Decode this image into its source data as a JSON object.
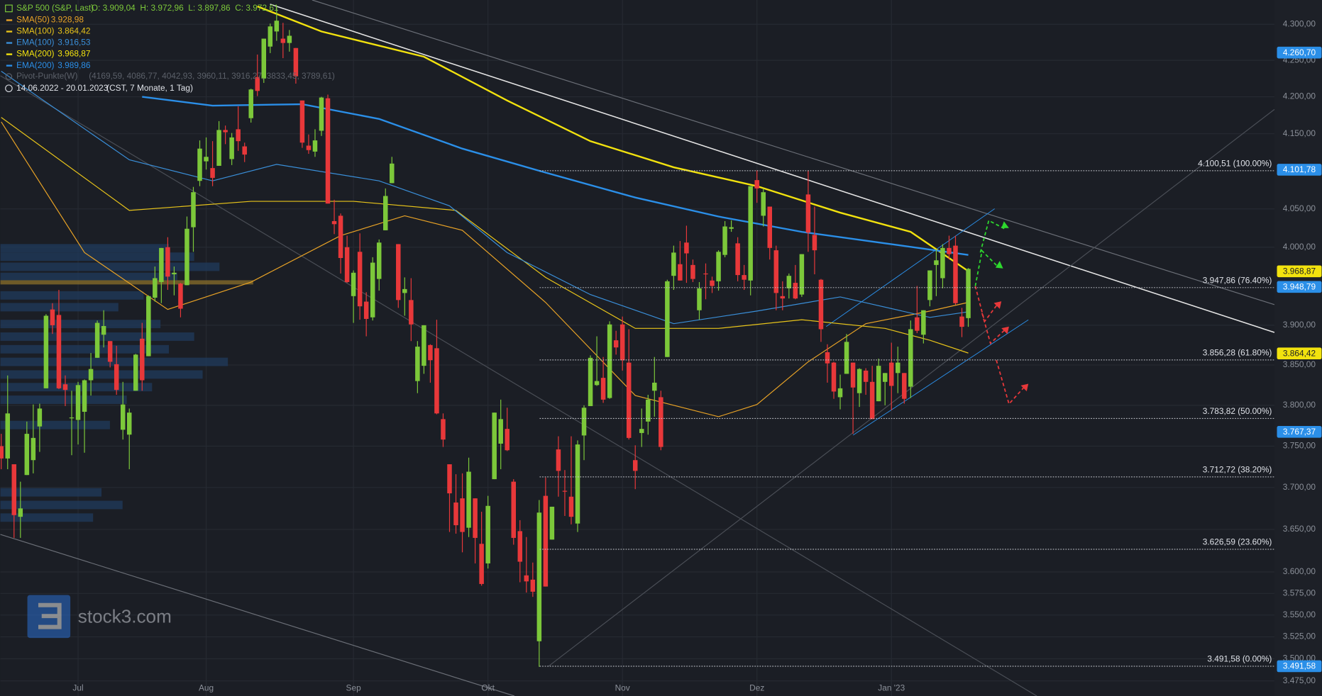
{
  "chart_data": {
    "type": "candlestick",
    "title": "S&P 500 (S&P, Last)",
    "ohlc_label": "O: 3.909,04  H: 3.972,96  L: 3.897,86  C: 3.972,61",
    "range_label": "14.06.2022 - 20.01.2023",
    "range_note": "(CST, 7 Monate, 1 Tag)",
    "pivot_name": "Pivot-Punkte(W)",
    "pivot_label": "(4169,59, 4086,77, 4042,93, 3960,11, 3916,27, 3833,45, 3789,61)",
    "watermark": "stock3.com",
    "log_scale": true,
    "grid": true,
    "up_color": "#7cc83a",
    "down_color": "#e8383a",
    "xlim": [
      -0.13,
      198.8
    ],
    "ylim": [
      3458,
      4334
    ],
    "xticks": [
      {
        "value": 12,
        "label": "Jul"
      },
      {
        "value": 32,
        "label": "Aug"
      },
      {
        "value": 55,
        "label": "Sep"
      },
      {
        "value": 76,
        "label": "Okt"
      },
      {
        "value": 97,
        "label": "Nov"
      },
      {
        "value": 118,
        "label": "Dez"
      },
      {
        "value": 139,
        "label": "Jan '23"
      }
    ],
    "yticks": [
      {
        "value": 4300,
        "label": "4.300,00"
      },
      {
        "value": 4250,
        "label": "4.250,00"
      },
      {
        "value": 4200,
        "label": "4.200,00"
      },
      {
        "value": 4150,
        "label": "4.150,00"
      },
      {
        "value": 4050,
        "label": "4.050,00"
      },
      {
        "value": 4000,
        "label": "4.000,00"
      },
      {
        "value": 3900,
        "label": "3.900,00"
      },
      {
        "value": 3850,
        "label": "3.850,00"
      },
      {
        "value": 3800,
        "label": "3.800,00"
      },
      {
        "value": 3750,
        "label": "3.750,00"
      },
      {
        "value": 3700,
        "label": "3.700,00"
      },
      {
        "value": 3650,
        "label": "3.650,00"
      },
      {
        "value": 3600,
        "label": "3.600,00"
      },
      {
        "value": 3575,
        "label": "3.575,00"
      },
      {
        "value": 3550,
        "label": "3.550,00"
      },
      {
        "value": 3525,
        "label": "3.525,00"
      },
      {
        "value": 3500,
        "label": "3.500,00"
      },
      {
        "value": 3475,
        "label": "3.475,00"
      }
    ],
    "levels": [
      {
        "value": 4100.51,
        "label": "4.100,51 (100.00%)"
      },
      {
        "value": 3947.86,
        "label": "3.947,86 (76.40%)"
      },
      {
        "value": 3856.28,
        "label": "3.856,28 (61.80%)"
      },
      {
        "value": 3783.82,
        "label": "3.783,82 (50.00%)"
      },
      {
        "value": 3712.72,
        "label": "3.712,72 (38.20%)"
      },
      {
        "value": 3626.59,
        "label": "3.626,59 (23.60%)"
      },
      {
        "value": 3491.58,
        "label": "3.491,58 (0.00%)"
      }
    ],
    "price_badges": [
      {
        "value": 4260.7,
        "label": "4.260,70",
        "color": "#2b8fe8"
      },
      {
        "value": 4101.78,
        "label": "4.101,78",
        "color": "#2b8fe8"
      },
      {
        "value": 3968.87,
        "label": "3.968,87",
        "color": "#f2e20e"
      },
      {
        "value": 3948.79,
        "label": "3.948,79",
        "color": "#2b8fe8"
      },
      {
        "value": 3864.42,
        "label": "3.864,42",
        "color": "#f2e20e"
      },
      {
        "value": 3767.37,
        "label": "3.767,37",
        "color": "#2b8fe8"
      },
      {
        "value": 3491.58,
        "label": "3.491,58",
        "color": "#2b8fe8"
      }
    ],
    "series": [
      {
        "name": "SMA(50)",
        "value_label": "3.928,98",
        "color": "#e9a326",
        "line_width": 1,
        "x": [
          0,
          13,
          26,
          39,
          53,
          63,
          72,
          85,
          99,
          112,
          118,
          126,
          135,
          145,
          151
        ],
        "values": [
          4166,
          3993,
          3920,
          3955,
          4015,
          4041,
          4022,
          3929,
          3812,
          3786,
          3801,
          3854,
          3902,
          3918,
          3929
        ]
      },
      {
        "name": "SMA(100)",
        "value_label": "3.864,42",
        "color": "#e8c41a",
        "line_width": 1,
        "x": [
          0,
          20,
          39,
          55,
          71,
          85,
          99,
          112,
          125,
          138,
          145,
          151
        ],
        "values": [
          4172,
          4048,
          4060,
          4060,
          4048,
          3961,
          3896,
          3896,
          3907,
          3896,
          3881,
          3865
        ]
      },
      {
        "name": "EMA(100)",
        "value_label": "3.916,53",
        "color": "#3a8fd9",
        "line_width": 1,
        "x": [
          0,
          20,
          33,
          43,
          59,
          70,
          79,
          92,
          105,
          118,
          131,
          145,
          151
        ],
        "values": [
          4235,
          4115,
          4087,
          4109,
          4087,
          4054,
          3993,
          3939,
          3902,
          3918,
          3936,
          3910,
          3917
        ]
      },
      {
        "name": "SMA(200)",
        "value_label": "3.968,87",
        "color": "#f2e20e",
        "line_width": 2,
        "x": [
          40,
          50,
          66,
          79,
          92,
          105,
          118,
          131,
          142,
          151
        ],
        "values": [
          4325,
          4290,
          4255,
          4195,
          4140,
          4105,
          4080,
          4045,
          4020,
          3969
        ]
      },
      {
        "name": "EMA(200)",
        "value_label": "3.989,86",
        "color": "#2b8fe8",
        "line_width": 2,
        "x": [
          22,
          33,
          47,
          59,
          72,
          85,
          99,
          112,
          125,
          138,
          151
        ],
        "values": [
          4200,
          4188,
          4190,
          4170,
          4130,
          4098,
          4065,
          4040,
          4020,
          4005,
          3990
        ]
      }
    ],
    "candles": [
      [
        3750,
        3765,
        3722,
        3735
      ],
      [
        3735,
        3837,
        3722,
        3790
      ],
      [
        3728,
        3728,
        3640,
        3667
      ],
      [
        3665,
        3707,
        3640,
        3675
      ],
      [
        3715,
        3780,
        3715,
        3765
      ],
      [
        3733,
        3801,
        3717,
        3760
      ],
      [
        3774,
        3802,
        3743,
        3796
      ],
      [
        3821,
        3914,
        3821,
        3912
      ],
      [
        3920,
        3928,
        3889,
        3900
      ],
      [
        3913,
        3945,
        3820,
        3821
      ],
      [
        3826,
        3837,
        3799,
        3819
      ],
      [
        3785,
        3818,
        3739,
        3785
      ],
      [
        3782,
        3829,
        3752,
        3825
      ],
      [
        3792,
        3832,
        3742,
        3831
      ],
      [
        3831,
        3865,
        3812,
        3845
      ],
      [
        3859,
        3906,
        3859,
        3903
      ],
      [
        3888,
        3919,
        3872,
        3899
      ],
      [
        3880,
        3880,
        3847,
        3854
      ],
      [
        3851,
        3874,
        3813,
        3819
      ],
      [
        3770,
        3829,
        3758,
        3801
      ],
      [
        3764,
        3796,
        3722,
        3791
      ],
      [
        3818,
        3864,
        3818,
        3863
      ],
      [
        3883,
        3903,
        3818,
        3831
      ],
      [
        3861,
        3938,
        3861,
        3937
      ],
      [
        3935,
        3975,
        3930,
        3960
      ],
      [
        3955,
        3999,
        3928,
        3999
      ],
      [
        4000,
        4013,
        3945,
        3962
      ],
      [
        3965,
        3975,
        3938,
        3967
      ],
      [
        3953,
        3954,
        3910,
        3921
      ],
      [
        3951,
        4040,
        3951,
        4024
      ],
      [
        4026,
        4079,
        3994,
        4072
      ],
      [
        4087,
        4141,
        4080,
        4130
      ],
      [
        4113,
        4145,
        4102,
        4119
      ],
      [
        4104,
        4140,
        4080,
        4091
      ],
      [
        4107,
        4167,
        4107,
        4155
      ],
      [
        4155,
        4161,
        4136,
        4152
      ],
      [
        4116,
        4151,
        4108,
        4145
      ],
      [
        4156,
        4187,
        4127,
        4140
      ],
      [
        4133,
        4138,
        4112,
        4122
      ],
      [
        4171,
        4211,
        4165,
        4210
      ],
      [
        4227,
        4258,
        4201,
        4208
      ],
      [
        4225,
        4280,
        4219,
        4280
      ],
      [
        4269,
        4301,
        4260,
        4297
      ],
      [
        4290,
        4325,
        4277,
        4305
      ],
      [
        4280,
        4302,
        4253,
        4274
      ],
      [
        4274,
        4292,
        4262,
        4284
      ],
      [
        4267,
        4267,
        4218,
        4228
      ],
      [
        4195,
        4195,
        4131,
        4138
      ],
      [
        4134,
        4149,
        4123,
        4128
      ],
      [
        4126,
        4156,
        4119,
        4141
      ],
      [
        4154,
        4200,
        4147,
        4199
      ],
      [
        4198,
        4203,
        4057,
        4057
      ],
      [
        4034,
        4062,
        4017,
        4030
      ],
      [
        4041,
        4044,
        3966,
        3986
      ],
      [
        4000,
        4015,
        3954,
        3955
      ],
      [
        3937,
        3970,
        3903,
        3967
      ],
      [
        3994,
        4018,
        3907,
        3924
      ],
      [
        3930,
        3942,
        3886,
        3908
      ],
      [
        3910,
        3987,
        3906,
        3980
      ],
      [
        3959,
        4010,
        3944,
        4006
      ],
      [
        4022,
        4077,
        4022,
        4067
      ],
      [
        4084,
        4119,
        4084,
        4110
      ],
      [
        4004,
        4004,
        3922,
        3932
      ],
      [
        3941,
        3961,
        3912,
        3946
      ],
      [
        3932,
        3960,
        3880,
        3901
      ],
      [
        3830,
        3880,
        3815,
        3873
      ],
      [
        3849,
        3900,
        3839,
        3900
      ],
      [
        3875,
        3876,
        3828,
        3856
      ],
      [
        3871,
        3907,
        3789,
        3790
      ],
      [
        3783,
        3790,
        3749,
        3758
      ],
      [
        3728,
        3728,
        3647,
        3693
      ],
      [
        3682,
        3716,
        3645,
        3655
      ],
      [
        3687,
        3717,
        3623,
        3647
      ],
      [
        3652,
        3736,
        3641,
        3719
      ],
      [
        3687,
        3687,
        3610,
        3640
      ],
      [
        3633,
        3671,
        3584,
        3586
      ],
      [
        3610,
        3690,
        3604,
        3678
      ],
      [
        3710,
        3791,
        3710,
        3791
      ],
      [
        3753,
        3807,
        3722,
        3783
      ],
      [
        3771,
        3797,
        3744,
        3745
      ],
      [
        3707,
        3710,
        3632,
        3640
      ],
      [
        3648,
        3661,
        3588,
        3612
      ],
      [
        3596,
        3641,
        3576,
        3589
      ],
      [
        3591,
        3611,
        3571,
        3577
      ],
      [
        3520,
        3685,
        3491,
        3670
      ],
      [
        3690,
        3712,
        3583,
        3583
      ],
      [
        3638,
        3677,
        3638,
        3677
      ],
      [
        3746,
        3762,
        3689,
        3720
      ],
      [
        3696,
        3721,
        3666,
        3695
      ],
      [
        3689,
        3762,
        3656,
        3665
      ],
      [
        3657,
        3757,
        3647,
        3752
      ],
      [
        3763,
        3800,
        3733,
        3797
      ],
      [
        3799,
        3862,
        3799,
        3859
      ],
      [
        3825,
        3886,
        3824,
        3830
      ],
      [
        3834,
        3860,
        3803,
        3807
      ],
      [
        3809,
        3905,
        3808,
        3901
      ],
      [
        3881,
        3893,
        3863,
        3872
      ],
      [
        3901,
        3911,
        3843,
        3856
      ],
      [
        3853,
        3895,
        3758,
        3760
      ],
      [
        3733,
        3751,
        3698,
        3720
      ],
      [
        3766,
        3796,
        3749,
        3771
      ],
      [
        3780,
        3813,
        3764,
        3807
      ],
      [
        3818,
        3860,
        3786,
        3828
      ],
      [
        3810,
        3818,
        3745,
        3749
      ],
      [
        3860,
        3958,
        3860,
        3956
      ],
      [
        3963,
        4002,
        3945,
        3993
      ],
      [
        3978,
        4008,
        3957,
        3957
      ],
      [
        4006,
        4028,
        3954,
        3992
      ],
      [
        3977,
        3984,
        3955,
        3959
      ],
      [
        3919,
        3955,
        3907,
        3947
      ],
      [
        3966,
        3979,
        3933,
        3965
      ],
      [
        3957,
        3962,
        3941,
        3950
      ],
      [
        3956,
        3996,
        3944,
        3994
      ],
      [
        3990,
        4034,
        3987,
        4027
      ],
      [
        4024,
        4035,
        4020,
        4026
      ],
      [
        4005,
        4013,
        3956,
        3964
      ],
      [
        3964,
        3977,
        3945,
        3958
      ],
      [
        3957,
        4080,
        3938,
        4080
      ],
      [
        4088,
        4101,
        4058,
        4077
      ],
      [
        4041,
        4077,
        4027,
        4072
      ],
      [
        4053,
        4053,
        3984,
        3999
      ],
      [
        3996,
        4002,
        3919,
        3941
      ],
      [
        3937,
        3956,
        3919,
        3934
      ],
      [
        3947,
        3966,
        3934,
        3963
      ],
      [
        3954,
        3977,
        3933,
        3934
      ],
      [
        3939,
        3991,
        3936,
        3991
      ],
      [
        4069,
        4101,
        3994,
        4019
      ],
      [
        4016,
        4053,
        3965,
        3996
      ],
      [
        3958,
        3959,
        3879,
        3895
      ],
      [
        3866,
        3876,
        3828,
        3852
      ],
      [
        3853,
        3854,
        3808,
        3817
      ],
      [
        3810,
        3838,
        3795,
        3821
      ],
      [
        3839,
        3889,
        3839,
        3879
      ],
      [
        3853,
        3853,
        3765,
        3822
      ],
      [
        3815,
        3846,
        3798,
        3845
      ],
      [
        3843,
        3846,
        3813,
        3829
      ],
      [
        3829,
        3849,
        3783,
        3783
      ],
      [
        3805,
        3858,
        3805,
        3849
      ],
      [
        3829,
        3840,
        3800,
        3840
      ],
      [
        3853,
        3878,
        3794,
        3824
      ],
      [
        3840,
        3873,
        3815,
        3853
      ],
      [
        3840,
        3840,
        3802,
        3808
      ],
      [
        3823,
        3906,
        3809,
        3895
      ],
      [
        3910,
        3950,
        3890,
        3893
      ],
      [
        3888,
        3919,
        3877,
        3919
      ],
      [
        3932,
        3970,
        3924,
        3970
      ],
      [
        3977,
        3997,
        3937,
        3983
      ],
      [
        3960,
        4004,
        3947,
        3999
      ],
      [
        3999,
        4015,
        3984,
        3991
      ],
      [
        4002,
        4015,
        3926,
        3928
      ],
      [
        3911,
        3922,
        3885,
        3898
      ],
      [
        3909,
        3973,
        3898,
        3972
      ]
    ]
  }
}
